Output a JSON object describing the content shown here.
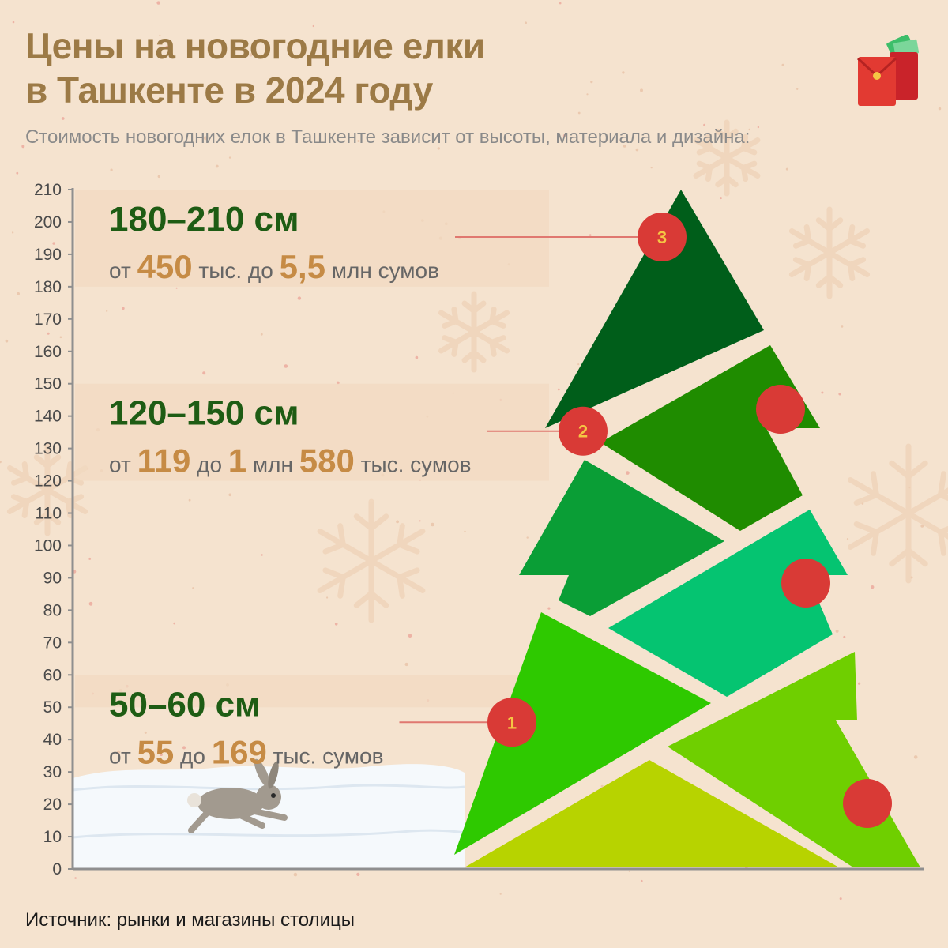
{
  "header": {
    "title": "Цены на новогодние елки\nв Ташкенте в 2024 году",
    "subtitle": "Стоимость новогодних елок в Ташкенте зависит от высоты, материала и дизайна:"
  },
  "chart_data": {
    "type": "bar",
    "title": "Цены на новогодние елки в Ташкенте в 2024 году",
    "xlabel": "",
    "ylabel": "",
    "ylim": [
      0,
      210
    ],
    "y_ticks": [
      0,
      10,
      20,
      30,
      40,
      50,
      60,
      70,
      80,
      90,
      100,
      110,
      120,
      130,
      140,
      150,
      160,
      170,
      180,
      190,
      200,
      210
    ],
    "grid": false,
    "height_bands_cm": [
      {
        "id": 1,
        "range_label": "50–60 см",
        "height_min": 50,
        "height_max": 60,
        "price_parts": [
          {
            "text": "от ",
            "highlight": false
          },
          {
            "text": "55",
            "highlight": true
          },
          {
            "text": " до ",
            "highlight": false
          },
          {
            "text": "169",
            "highlight": true
          },
          {
            "text": " тыс. сумов",
            "highlight": false
          }
        ],
        "price_min_sum": 55000,
        "price_max_sum": 169000
      },
      {
        "id": 2,
        "range_label": "120–150 см",
        "height_min": 120,
        "height_max": 150,
        "price_parts": [
          {
            "text": "от ",
            "highlight": false
          },
          {
            "text": "119",
            "highlight": true
          },
          {
            "text": " до ",
            "highlight": false
          },
          {
            "text": "1",
            "highlight": true
          },
          {
            "text": " млн ",
            "highlight": false
          },
          {
            "text": "580",
            "highlight": true
          },
          {
            "text": " тыс. сумов",
            "highlight": false
          }
        ],
        "price_min_sum": 119000,
        "price_max_sum": 1580000
      },
      {
        "id": 3,
        "range_label": "180–210 см",
        "height_min": 180,
        "height_max": 210,
        "price_parts": [
          {
            "text": "от ",
            "highlight": false
          },
          {
            "text": "450",
            "highlight": true
          },
          {
            "text": " тыс. до ",
            "highlight": false
          },
          {
            "text": "5,5",
            "highlight": true
          },
          {
            "text": " млн сумов",
            "highlight": false
          }
        ],
        "price_min_sum": 450000,
        "price_max_sum": 5500000
      }
    ],
    "tree_top_height": 210
  },
  "source": "Источник: рынки и магазины столицы",
  "colors": {
    "background": "#F5E3CF",
    "title": "#9C7A46",
    "range_label": "#1E5C14",
    "price_highlight": "#C68B45",
    "marker": "#D93A36",
    "marker_number": "#F5C544",
    "tree_tiers": [
      "#005E1A",
      "#1F8C00",
      "#0A9E36",
      "#05C471",
      "#2EC900",
      "#6FCF00",
      "#B7D300"
    ]
  },
  "icons": {
    "gift": "red-envelope-gift-icon",
    "rabbit": "rabbit-icon",
    "snow": "snow-drift",
    "snowflake": "snowflake-icon"
  }
}
